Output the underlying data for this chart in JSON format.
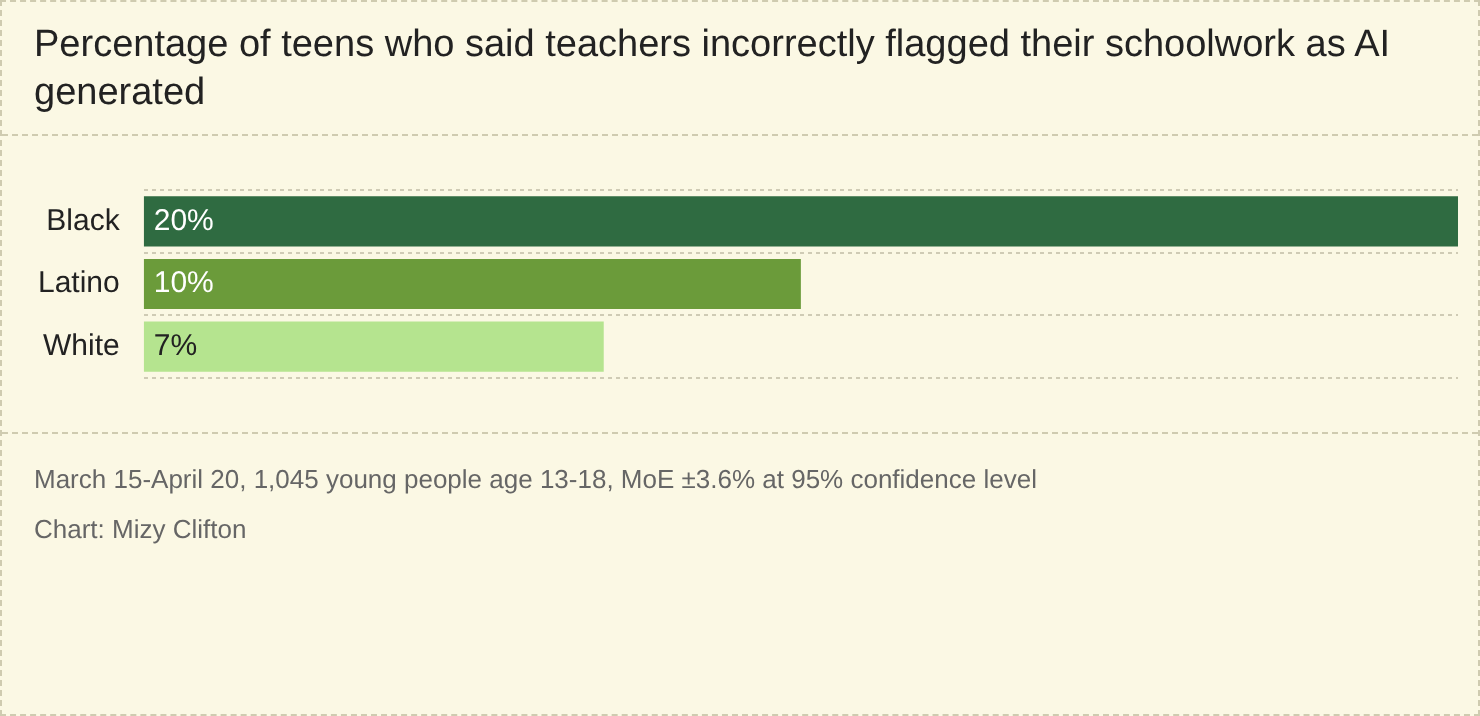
{
  "chart_data": {
    "type": "bar",
    "orientation": "horizontal",
    "title": "Percentage of teens who said teachers incorrectly flagged their schoolwork as AI generated",
    "categories": [
      "Black",
      "Latino",
      "White"
    ],
    "values": [
      20,
      10,
      7
    ],
    "colors": [
      "#2f6b41",
      "#6b9b3a",
      "#b5e48f"
    ],
    "value_labels": [
      "20%",
      "10%",
      "7%"
    ],
    "grid": "y",
    "annotations": [
      "March 15-April 20, 1,045 young people age 13-18, MoE ±3.6% at 95% confidence level",
      "Chart: Mizy Clifton"
    ]
  }
}
